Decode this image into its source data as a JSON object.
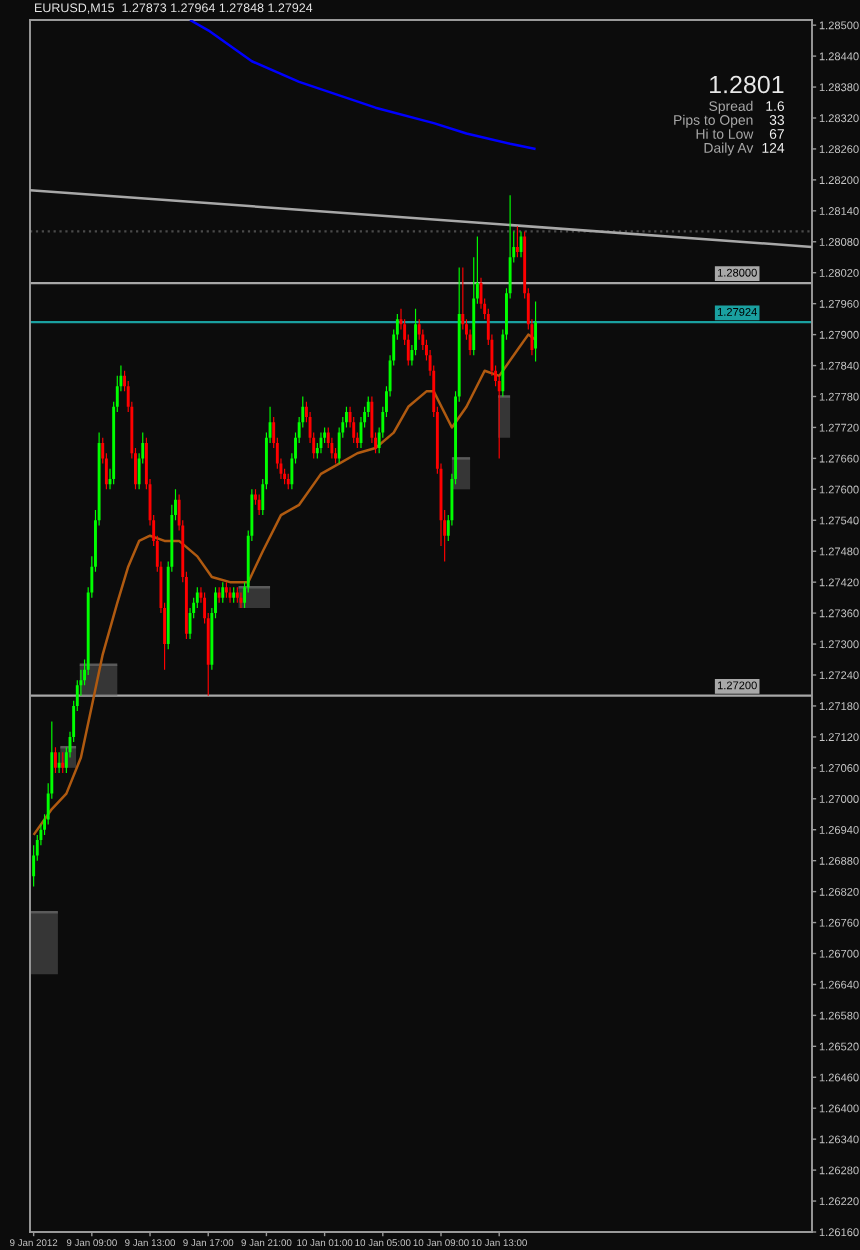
{
  "chart_data": {
    "type": "candlestick",
    "title": "EURUSD,M15  1.27873 1.27964 1.27848 1.27924",
    "x": [
      "2012-01-09T05:00",
      "2012-01-09T05:15",
      "2012-01-09T05:30",
      "2012-01-09T05:45",
      "2012-01-09T06:00",
      "2012-01-09T06:15",
      "2012-01-09T06:30",
      "2012-01-09T06:45",
      "2012-01-09T07:00",
      "2012-01-09T07:15",
      "2012-01-09T07:30",
      "2012-01-09T07:45",
      "2012-01-09T08:00",
      "2012-01-09T08:15",
      "2012-01-09T08:30",
      "2012-01-09T08:45",
      "2012-01-09T09:00",
      "2012-01-09T09:15",
      "2012-01-09T09:30",
      "2012-01-09T09:45",
      "2012-01-09T10:00",
      "2012-01-09T10:15",
      "2012-01-09T10:30",
      "2012-01-09T10:45",
      "2012-01-09T11:00",
      "2012-01-09T11:15",
      "2012-01-09T11:30",
      "2012-01-09T11:45",
      "2012-01-09T12:00",
      "2012-01-09T12:15",
      "2012-01-09T12:30",
      "2012-01-09T12:45",
      "2012-01-09T13:00",
      "2012-01-09T13:15",
      "2012-01-09T13:30",
      "2012-01-09T13:45",
      "2012-01-09T14:00",
      "2012-01-09T14:15",
      "2012-01-09T14:30",
      "2012-01-09T14:45",
      "2012-01-09T15:00",
      "2012-01-09T15:15",
      "2012-01-09T15:30",
      "2012-01-09T15:45",
      "2012-01-09T16:00",
      "2012-01-09T16:15",
      "2012-01-09T16:30",
      "2012-01-09T16:45",
      "2012-01-09T17:00",
      "2012-01-09T17:15",
      "2012-01-09T17:30",
      "2012-01-09T17:45",
      "2012-01-09T18:00",
      "2012-01-09T18:15",
      "2012-01-09T18:30",
      "2012-01-09T18:45",
      "2012-01-09T19:00",
      "2012-01-09T19:15",
      "2012-01-09T19:30",
      "2012-01-09T19:45",
      "2012-01-09T20:00",
      "2012-01-09T20:15",
      "2012-01-09T20:30",
      "2012-01-09T20:45",
      "2012-01-09T21:00",
      "2012-01-09T21:15",
      "2012-01-09T21:30",
      "2012-01-09T21:45",
      "2012-01-09T22:00",
      "2012-01-09T22:15",
      "2012-01-09T22:30",
      "2012-01-09T22:45",
      "2012-01-09T23:00",
      "2012-01-09T23:15",
      "2012-01-09T23:30",
      "2012-01-09T23:45",
      "2012-01-10T00:00",
      "2012-01-10T00:15",
      "2012-01-10T00:30",
      "2012-01-10T00:45",
      "2012-01-10T01:00",
      "2012-01-10T01:15",
      "2012-01-10T01:30",
      "2012-01-10T01:45",
      "2012-01-10T02:00",
      "2012-01-10T02:15",
      "2012-01-10T02:30",
      "2012-01-10T02:45",
      "2012-01-10T03:00",
      "2012-01-10T03:15",
      "2012-01-10T03:30",
      "2012-01-10T03:45",
      "2012-01-10T04:00",
      "2012-01-10T04:15",
      "2012-01-10T04:30",
      "2012-01-10T04:45",
      "2012-01-10T05:00",
      "2012-01-10T05:15",
      "2012-01-10T05:30",
      "2012-01-10T05:45",
      "2012-01-10T06:00",
      "2012-01-10T06:15",
      "2012-01-10T06:30",
      "2012-01-10T06:45",
      "2012-01-10T07:00",
      "2012-01-10T07:15",
      "2012-01-10T07:30",
      "2012-01-10T07:45",
      "2012-01-10T08:00",
      "2012-01-10T08:15",
      "2012-01-10T08:30",
      "2012-01-10T08:45",
      "2012-01-10T09:00",
      "2012-01-10T09:15",
      "2012-01-10T09:30",
      "2012-01-10T09:45",
      "2012-01-10T10:00",
      "2012-01-10T10:15",
      "2012-01-10T10:30",
      "2012-01-10T10:45",
      "2012-01-10T11:00",
      "2012-01-10T11:15",
      "2012-01-10T11:30",
      "2012-01-10T11:45",
      "2012-01-10T12:00",
      "2012-01-10T12:15",
      "2012-01-10T12:30",
      "2012-01-10T12:45",
      "2012-01-10T13:00",
      "2012-01-10T13:15",
      "2012-01-10T13:30",
      "2012-01-10T13:45",
      "2012-01-10T14:00",
      "2012-01-10T14:15",
      "2012-01-10T14:30",
      "2012-01-10T14:45",
      "2012-01-10T15:00",
      "2012-01-10T15:15",
      "2012-01-10T15:30"
    ],
    "ohlc": [
      [
        1.2685,
        1.2691,
        1.2683,
        1.2689
      ],
      [
        1.2689,
        1.2693,
        1.2688,
        1.2692
      ],
      [
        1.2692,
        1.2695,
        1.2691,
        1.2694
      ],
      [
        1.2694,
        1.2697,
        1.2693,
        1.2696
      ],
      [
        1.2696,
        1.2703,
        1.2695,
        1.2701
      ],
      [
        1.2701,
        1.2715,
        1.27,
        1.2709
      ],
      [
        1.2709,
        1.271,
        1.2705,
        1.2706
      ],
      [
        1.2706,
        1.2709,
        1.2705,
        1.2707
      ],
      [
        1.2707,
        1.2709,
        1.2705,
        1.2706
      ],
      [
        1.2706,
        1.271,
        1.2705,
        1.2709
      ],
      [
        1.2709,
        1.2713,
        1.2708,
        1.2712
      ],
      [
        1.2712,
        1.2719,
        1.2711,
        1.2718
      ],
      [
        1.2718,
        1.2723,
        1.2717,
        1.2722
      ],
      [
        1.2722,
        1.2725,
        1.272,
        1.2723
      ],
      [
        1.2723,
        1.2727,
        1.2722,
        1.2725
      ],
      [
        1.2725,
        1.2741,
        1.2724,
        1.274
      ],
      [
        1.274,
        1.2747,
        1.2739,
        1.2745
      ],
      [
        1.2745,
        1.2756,
        1.2744,
        1.2754
      ],
      [
        1.2754,
        1.2771,
        1.2753,
        1.2769
      ],
      [
        1.2769,
        1.277,
        1.2765,
        1.2766
      ],
      [
        1.2766,
        1.2767,
        1.276,
        1.2761
      ],
      [
        1.2761,
        1.2764,
        1.276,
        1.2762
      ],
      [
        1.2762,
        1.2777,
        1.2761,
        1.2776
      ],
      [
        1.2776,
        1.2782,
        1.2775,
        1.278
      ],
      [
        1.278,
        1.2784,
        1.2779,
        1.2782
      ],
      [
        1.2782,
        1.2783,
        1.2779,
        1.278
      ],
      [
        1.278,
        1.2781,
        1.2775,
        1.2776
      ],
      [
        1.2776,
        1.2777,
        1.2766,
        1.2767
      ],
      [
        1.2767,
        1.2768,
        1.276,
        1.2761
      ],
      [
        1.2761,
        1.2767,
        1.276,
        1.2766
      ],
      [
        1.2766,
        1.2771,
        1.2765,
        1.2769
      ],
      [
        1.2769,
        1.277,
        1.276,
        1.2761
      ],
      [
        1.2761,
        1.2762,
        1.2753,
        1.2754
      ],
      [
        1.2754,
        1.2755,
        1.2749,
        1.275
      ],
      [
        1.275,
        1.2751,
        1.2744,
        1.2745
      ],
      [
        1.2745,
        1.2746,
        1.2736,
        1.2737
      ],
      [
        1.2737,
        1.2738,
        1.2725,
        1.273
      ],
      [
        1.273,
        1.2746,
        1.2729,
        1.2745
      ],
      [
        1.2745,
        1.2757,
        1.2744,
        1.2755
      ],
      [
        1.2755,
        1.276,
        1.2754,
        1.2758
      ],
      [
        1.2758,
        1.2759,
        1.2752,
        1.2753
      ],
      [
        1.2753,
        1.2754,
        1.2742,
        1.2743
      ],
      [
        1.2743,
        1.2744,
        1.2731,
        1.2732
      ],
      [
        1.2732,
        1.2737,
        1.2731,
        1.2736
      ],
      [
        1.2736,
        1.2739,
        1.2735,
        1.2738
      ],
      [
        1.2738,
        1.2741,
        1.2737,
        1.274
      ],
      [
        1.274,
        1.2741,
        1.2738,
        1.2739
      ],
      [
        1.2739,
        1.274,
        1.2734,
        1.2735
      ],
      [
        1.2735,
        1.2736,
        1.272,
        1.2726
      ],
      [
        1.2726,
        1.2737,
        1.2725,
        1.2736
      ],
      [
        1.2736,
        1.2741,
        1.2735,
        1.274
      ],
      [
        1.274,
        1.2741,
        1.2738,
        1.2739
      ],
      [
        1.2739,
        1.2742,
        1.2738,
        1.2741
      ],
      [
        1.2741,
        1.2742,
        1.2739,
        1.274
      ],
      [
        1.274,
        1.2741,
        1.2738,
        1.2739
      ],
      [
        1.2739,
        1.2741,
        1.2738,
        1.274
      ],
      [
        1.274,
        1.2741,
        1.2738,
        1.2739
      ],
      [
        1.2739,
        1.274,
        1.2737,
        1.2738
      ],
      [
        1.2738,
        1.2742,
        1.2737,
        1.2741
      ],
      [
        1.2741,
        1.2752,
        1.274,
        1.2751
      ],
      [
        1.2751,
        1.276,
        1.275,
        1.2759
      ],
      [
        1.2759,
        1.276,
        1.2757,
        1.2758
      ],
      [
        1.2758,
        1.2759,
        1.2755,
        1.2756
      ],
      [
        1.2756,
        1.2762,
        1.2755,
        1.2761
      ],
      [
        1.2761,
        1.2771,
        1.276,
        1.277
      ],
      [
        1.277,
        1.2776,
        1.2769,
        1.2773
      ],
      [
        1.2773,
        1.2774,
        1.2768,
        1.2769
      ],
      [
        1.2769,
        1.277,
        1.2764,
        1.2765
      ],
      [
        1.2765,
        1.2766,
        1.2762,
        1.2763
      ],
      [
        1.2763,
        1.2764,
        1.2761,
        1.2762
      ],
      [
        1.2762,
        1.2763,
        1.276,
        1.2761
      ],
      [
        1.2761,
        1.2767,
        1.276,
        1.2766
      ],
      [
        1.2766,
        1.2771,
        1.2765,
        1.277
      ],
      [
        1.277,
        1.2774,
        1.2769,
        1.2773
      ],
      [
        1.2773,
        1.2778,
        1.2772,
        1.2776
      ],
      [
        1.2776,
        1.2777,
        1.2773,
        1.2774
      ],
      [
        1.2774,
        1.2775,
        1.2769,
        1.277
      ],
      [
        1.277,
        1.2771,
        1.2766,
        1.2767
      ],
      [
        1.2767,
        1.2769,
        1.2766,
        1.2768
      ],
      [
        1.2768,
        1.2771,
        1.2767,
        1.277
      ],
      [
        1.277,
        1.2772,
        1.2769,
        1.2771
      ],
      [
        1.2771,
        1.2772,
        1.2768,
        1.2769
      ],
      [
        1.2769,
        1.277,
        1.2766,
        1.2767
      ],
      [
        1.2767,
        1.2768,
        1.2765,
        1.2766
      ],
      [
        1.2766,
        1.2772,
        1.2765,
        1.2771
      ],
      [
        1.2771,
        1.2774,
        1.277,
        1.2773
      ],
      [
        1.2773,
        1.2776,
        1.2772,
        1.2775
      ],
      [
        1.2775,
        1.2776,
        1.2772,
        1.2773
      ],
      [
        1.2773,
        1.2774,
        1.2769,
        1.277
      ],
      [
        1.277,
        1.2771,
        1.2768,
        1.2769
      ],
      [
        1.2769,
        1.2774,
        1.2768,
        1.2773
      ],
      [
        1.2773,
        1.2776,
        1.2772,
        1.2775
      ],
      [
        1.2775,
        1.2778,
        1.2774,
        1.2777
      ],
      [
        1.2777,
        1.2778,
        1.2769,
        1.277
      ],
      [
        1.277,
        1.2771,
        1.2767,
        1.2768
      ],
      [
        1.2768,
        1.2772,
        1.2767,
        1.2771
      ],
      [
        1.2771,
        1.2776,
        1.277,
        1.2775
      ],
      [
        1.2775,
        1.278,
        1.2774,
        1.2779
      ],
      [
        1.2779,
        1.2786,
        1.2778,
        1.2785
      ],
      [
        1.2785,
        1.2791,
        1.2784,
        1.279
      ],
      [
        1.279,
        1.2794,
        1.2789,
        1.2793
      ],
      [
        1.2793,
        1.2795,
        1.2791,
        1.2792
      ],
      [
        1.2792,
        1.2793,
        1.2788,
        1.2789
      ],
      [
        1.2789,
        1.279,
        1.2784,
        1.2785
      ],
      [
        1.2785,
        1.2788,
        1.2784,
        1.2787
      ],
      [
        1.2787,
        1.2795,
        1.2786,
        1.2792
      ],
      [
        1.2792,
        1.2793,
        1.2789,
        1.279
      ],
      [
        1.279,
        1.2791,
        1.2787,
        1.2788
      ],
      [
        1.2788,
        1.2789,
        1.2785,
        1.2786
      ],
      [
        1.2786,
        1.2787,
        1.2782,
        1.2783
      ],
      [
        1.2783,
        1.2784,
        1.2774,
        1.2775
      ],
      [
        1.2775,
        1.2776,
        1.2763,
        1.2764
      ],
      [
        1.2764,
        1.2765,
        1.2749,
        1.2754
      ],
      [
        1.2754,
        1.2756,
        1.2746,
        1.2751
      ],
      [
        1.2751,
        1.2755,
        1.275,
        1.2754
      ],
      [
        1.2754,
        1.2763,
        1.2753,
        1.2762
      ],
      [
        1.2762,
        1.2779,
        1.2761,
        1.2778
      ],
      [
        1.2778,
        1.2803,
        1.2777,
        1.2794
      ],
      [
        1.2794,
        1.2803,
        1.2791,
        1.2792
      ],
      [
        1.2792,
        1.2793,
        1.2789,
        1.279
      ],
      [
        1.279,
        1.2791,
        1.2786,
        1.2787
      ],
      [
        1.2787,
        1.2805,
        1.2786,
        1.2797
      ],
      [
        1.2797,
        1.2809,
        1.2796,
        1.28
      ],
      [
        1.28,
        1.2801,
        1.2795,
        1.2796
      ],
      [
        1.2796,
        1.2797,
        1.2793,
        1.2794
      ],
      [
        1.2794,
        1.2795,
        1.2788,
        1.2789
      ],
      [
        1.2789,
        1.279,
        1.2782,
        1.2783
      ],
      [
        1.2783,
        1.2784,
        1.278,
        1.2781
      ],
      [
        1.2781,
        1.2782,
        1.2766,
        1.2779
      ],
      [
        1.2779,
        1.2791,
        1.2778,
        1.279
      ],
      [
        1.279,
        1.2799,
        1.2789,
        1.2798
      ],
      [
        1.2798,
        1.2817,
        1.2797,
        1.2805
      ],
      [
        1.2805,
        1.281,
        1.2804,
        1.2807
      ],
      [
        1.2807,
        1.2811,
        1.2805,
        1.2806
      ],
      [
        1.2806,
        1.281,
        1.2805,
        1.2809
      ],
      [
        1.2809,
        1.281,
        1.2797,
        1.2798
      ],
      [
        1.2798,
        1.2799,
        1.2791,
        1.2792
      ],
      [
        1.2792,
        1.2793,
        1.2786,
        1.2787
      ],
      [
        1.27873,
        1.27964,
        1.27848,
        1.27924
      ]
    ],
    "colors": [
      "#00ff00",
      "#00ff00",
      "#00ff00",
      "#00ff00",
      "#00ff00",
      "#00ff00",
      "#ff0000",
      "#00ff00",
      "#ff0000",
      "#00ff00",
      "#00ff00",
      "#00ff00",
      "#00ff00",
      "#00ff00",
      "#00ff00",
      "#00ff00",
      "#00ff00",
      "#00ff00",
      "#00ff00",
      "#ff0000",
      "#ff0000",
      "#00ff00",
      "#00ff00",
      "#00ff00",
      "#00ff00",
      "#ff0000",
      "#ff0000",
      "#ff0000",
      "#ff0000",
      "#00ff00",
      "#00ff00",
      "#ff0000",
      "#ff0000",
      "#ff0000",
      "#ff0000",
      "#ff0000",
      "#ff0000",
      "#00ff00",
      "#00ff00",
      "#00ff00",
      "#ff0000",
      "#ff0000",
      "#ff0000",
      "#00ff00",
      "#00ff00",
      "#00ff00",
      "#ff0000",
      "#ff0000",
      "#ff0000",
      "#00ff00",
      "#00ff00",
      "#ff0000",
      "#00ff00",
      "#ff0000",
      "#ff0000",
      "#00ff00",
      "#ff0000",
      "#ff0000",
      "#00ff00",
      "#00ff00",
      "#00ff00",
      "#ff0000",
      "#ff0000",
      "#00ff00",
      "#00ff00",
      "#00ff00",
      "#ff0000",
      "#ff0000",
      "#ff0000",
      "#ff0000",
      "#ff0000",
      "#00ff00",
      "#00ff00",
      "#00ff00",
      "#00ff00",
      "#ff0000",
      "#ff0000",
      "#ff0000",
      "#00ff00",
      "#00ff00",
      "#00ff00",
      "#ff0000",
      "#ff0000",
      "#ff0000",
      "#00ff00",
      "#00ff00",
      "#00ff00",
      "#ff0000",
      "#ff0000",
      "#ff0000",
      "#00ff00",
      "#00ff00",
      "#00ff00",
      "#ff0000",
      "#ff0000",
      "#00ff00",
      "#00ff00",
      "#00ff00",
      "#00ff00",
      "#00ff00",
      "#00ff00",
      "#ff0000",
      "#ff0000",
      "#ff0000",
      "#00ff00",
      "#00ff00",
      "#ff0000",
      "#ff0000",
      "#ff0000",
      "#ff0000",
      "#ff0000",
      "#ff0000",
      "#ff0000",
      "#ff0000",
      "#00ff00",
      "#00ff00",
      "#00ff00",
      "#00ff00",
      "#ff0000",
      "#ff0000",
      "#ff0000",
      "#00ff00",
      "#00ff00",
      "#ff0000",
      "#ff0000",
      "#ff0000",
      "#ff0000",
      "#ff0000",
      "#ff0000",
      "#00ff00",
      "#00ff00",
      "#00ff00",
      "#00ff00",
      "#ff0000",
      "#00ff00",
      "#ff0000",
      "#ff0000",
      "#ff0000",
      "#00ff00"
    ],
    "series": [
      {
        "type": "line",
        "color": "#0000ff",
        "x": [
          "2012-01-09T15:45",
          "2012-01-09T17:00",
          "2012-01-09T20:00",
          "2012-01-09T23:15",
          "2012-01-10T04:30",
          "2012-01-10T08:30",
          "2012-01-10T10:45",
          "2012-01-10T13:45",
          "2012-01-10T15:30"
        ],
        "values": [
          1.2851,
          1.2849,
          1.2843,
          1.2839,
          1.2834,
          1.2831,
          1.2829,
          1.2827,
          1.2826
        ]
      },
      {
        "type": "line",
        "color": "#b05a10",
        "x": [
          "2012-01-09T05:00",
          "2012-01-09T06:15",
          "2012-01-09T07:15",
          "2012-01-09T08:15",
          "2012-01-09T09:00",
          "2012-01-09T09:45",
          "2012-01-09T10:45",
          "2012-01-09T11:30",
          "2012-01-09T12:15",
          "2012-01-09T13:00",
          "2012-01-09T14:00",
          "2012-01-09T15:00",
          "2012-01-09T16:15",
          "2012-01-09T17:15",
          "2012-01-09T18:30",
          "2012-01-09T19:45",
          "2012-01-09T20:45",
          "2012-01-09T22:00",
          "2012-01-09T23:15",
          "2012-01-10T00:45",
          "2012-01-10T02:00",
          "2012-01-10T03:15",
          "2012-01-10T04:30",
          "2012-01-10T05:45",
          "2012-01-10T06:45",
          "2012-01-10T08:00",
          "2012-01-10T08:30",
          "2012-01-10T09:45",
          "2012-01-10T10:45",
          "2012-01-10T12:00",
          "2012-01-10T13:00",
          "2012-01-10T14:15",
          "2012-01-10T15:00",
          "2012-01-10T15:30"
        ],
        "values": [
          1.2693,
          1.2698,
          1.2701,
          1.2708,
          1.2718,
          1.2728,
          1.2738,
          1.2745,
          1.275,
          1.2751,
          1.275,
          1.275,
          1.2747,
          1.2743,
          1.2742,
          1.2742,
          1.2748,
          1.2755,
          1.2757,
          1.2763,
          1.2765,
          1.2767,
          1.2768,
          1.2771,
          1.2776,
          1.2779,
          1.2779,
          1.2772,
          1.2776,
          1.2783,
          1.2782,
          1.2787,
          1.279,
          1.2789
        ]
      },
      {
        "type": "line",
        "color": "#a8a8a8",
        "x": [
          "2012-01-09T04:45",
          "2012-01-11T10:30"
        ],
        "values": [
          1.2818,
          1.2807
        ]
      },
      {
        "type": "line",
        "color": "#5a5a5a",
        "x": [
          "2012-01-09T04:45",
          "2012-01-09T06:40"
        ],
        "values": [
          1.2678,
          1.2678
        ],
        "lower": [
          1.2666,
          1.2666
        ],
        "upper": [
          1.2678,
          1.2678
        ]
      },
      {
        "type": "line",
        "color": "#5a5a5a",
        "x": [
          "2012-01-09T06:50",
          "2012-01-09T07:55"
        ],
        "values": [
          1.271,
          1.271
        ],
        "lower": [
          1.2706,
          1.2706
        ],
        "upper": [
          1.271,
          1.271
        ]
      },
      {
        "type": "line",
        "color": "#5a5a5a",
        "x": [
          "2012-01-09T08:10",
          "2012-01-09T10:45"
        ],
        "values": [
          1.2726,
          1.2726
        ],
        "lower": [
          1.272,
          1.272
        ],
        "upper": [
          1.2726,
          1.2726
        ]
      },
      {
        "type": "line",
        "color": "#5a5a5a",
        "x": [
          "2012-01-09T19:05",
          "2012-01-09T21:15"
        ],
        "values": [
          1.2741,
          1.2741
        ],
        "lower": [
          1.2737,
          1.2737
        ],
        "upper": [
          1.2741,
          1.2741
        ]
      },
      {
        "type": "line",
        "color": "#5a5a5a",
        "x": [
          "2012-01-10T09:45",
          "2012-01-10T11:00"
        ],
        "values": [
          1.2766,
          1.2766
        ],
        "lower": [
          1.276,
          1.276
        ],
        "upper": [
          1.2766,
          1.2766
        ]
      },
      {
        "type": "line",
        "color": "#5a5a5a",
        "x": [
          "2012-01-10T12:55",
          "2012-01-10T13:45"
        ],
        "values": [
          1.2778,
          1.2778
        ],
        "lower": [
          1.277,
          1.277
        ],
        "upper": [
          1.2778,
          1.2778
        ]
      }
    ],
    "xlim": [
      "2012-01-09T04:45",
      "2012-01-11T10:30"
    ],
    "xticks": [
      {
        "value": "2012-01-09T05:00",
        "label": "9 Jan 2012"
      },
      {
        "value": "2012-01-09T09:00",
        "label": "9 Jan 09:00"
      },
      {
        "value": "2012-01-09T13:00",
        "label": "9 Jan 13:00"
      },
      {
        "value": "2012-01-09T17:00",
        "label": "9 Jan 17:00"
      },
      {
        "value": "2012-01-09T21:00",
        "label": "9 Jan 21:00"
      },
      {
        "value": "2012-01-10T01:00",
        "label": "10 Jan 01:00"
      },
      {
        "value": "2012-01-10T05:00",
        "label": "10 Jan 05:00"
      },
      {
        "value": "2012-01-10T09:00",
        "label": "10 Jan 09:00"
      },
      {
        "value": "2012-01-10T13:00",
        "label": "10 Jan 13:00"
      }
    ],
    "ylim": [
      1.2616,
      1.2851
    ],
    "yticks": [
      {
        "value": 1.285,
        "label": "1.28500"
      },
      {
        "value": 1.2844,
        "label": "1.28440"
      },
      {
        "value": 1.2838,
        "label": "1.28380"
      },
      {
        "value": 1.2832,
        "label": "1.28320"
      },
      {
        "value": 1.2826,
        "label": "1.28260"
      },
      {
        "value": 1.282,
        "label": "1.28200"
      },
      {
        "value": 1.2814,
        "label": "1.28140"
      },
      {
        "value": 1.2808,
        "label": "1.28080"
      },
      {
        "value": 1.2802,
        "label": "1.28020"
      },
      {
        "value": 1.2796,
        "label": "1.27960"
      },
      {
        "value": 1.279,
        "label": "1.27900"
      },
      {
        "value": 1.2784,
        "label": "1.27840"
      },
      {
        "value": 1.2778,
        "label": "1.27780"
      },
      {
        "value": 1.2772,
        "label": "1.27720"
      },
      {
        "value": 1.2766,
        "label": "1.27660"
      },
      {
        "value": 1.276,
        "label": "1.27600"
      },
      {
        "value": 1.2754,
        "label": "1.27540"
      },
      {
        "value": 1.2748,
        "label": "1.27480"
      },
      {
        "value": 1.2742,
        "label": "1.27420"
      },
      {
        "value": 1.2736,
        "label": "1.27360"
      },
      {
        "value": 1.273,
        "label": "1.27300"
      },
      {
        "value": 1.2724,
        "label": "1.27240"
      },
      {
        "value": 1.2718,
        "label": "1.27180"
      },
      {
        "value": 1.2712,
        "label": "1.27120"
      },
      {
        "value": 1.2706,
        "label": "1.27060"
      },
      {
        "value": 1.27,
        "label": "1.27000"
      },
      {
        "value": 1.2694,
        "label": "1.26940"
      },
      {
        "value": 1.2688,
        "label": "1.26880"
      },
      {
        "value": 1.2682,
        "label": "1.26820"
      },
      {
        "value": 1.2676,
        "label": "1.26760"
      },
      {
        "value": 1.267,
        "label": "1.26700"
      },
      {
        "value": 1.2664,
        "label": "1.26640"
      },
      {
        "value": 1.2658,
        "label": "1.26580"
      },
      {
        "value": 1.2652,
        "label": "1.26520"
      },
      {
        "value": 1.2646,
        "label": "1.26460"
      },
      {
        "value": 1.264,
        "label": "1.26400"
      },
      {
        "value": 1.2634,
        "label": "1.26340"
      },
      {
        "value": 1.2628,
        "label": "1.26280"
      },
      {
        "value": 1.2622,
        "label": "1.26220"
      },
      {
        "value": 1.2616,
        "label": "1.26160"
      }
    ],
    "ref_lines": [
      {
        "axis": "y",
        "value": 1.281,
        "color": "#4a4a4a",
        "line_style": "dotted"
      },
      {
        "axis": "y",
        "value": 1.28,
        "label": "1.28000",
        "color": "#a8a8a8"
      },
      {
        "axis": "y",
        "value": 1.27924,
        "label": "1.27924",
        "color": "#1aa0a0"
      },
      {
        "axis": "y",
        "value": 1.272,
        "label": "1.27200",
        "color": "#a8a8a8"
      }
    ],
    "annotations": [
      "1.2801",
      "Spread",
      "1.6",
      "Pips to Open",
      "33",
      "Hi to Low",
      "67",
      "Daily Av",
      "124"
    ]
  }
}
